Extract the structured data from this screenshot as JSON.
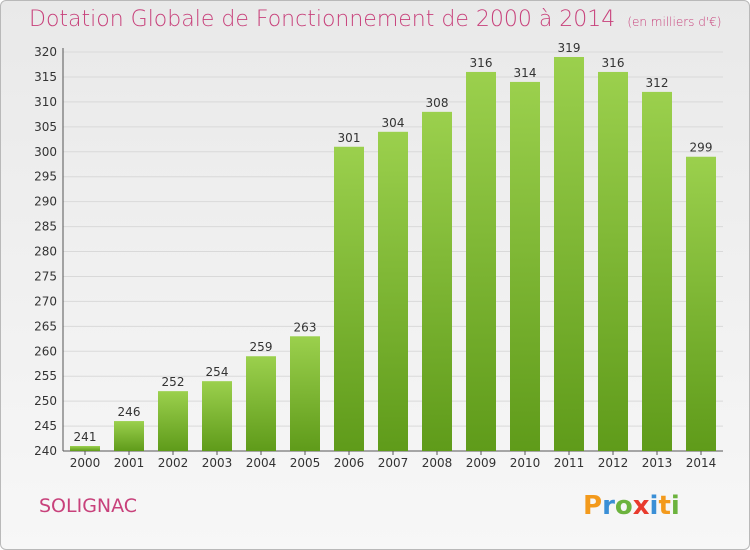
{
  "title": "Dotation Globale de Fonctionnement de 2000 à 2014",
  "unit": "(en milliers d'€)",
  "commune": "SOLIGNAC",
  "logo": [
    "P",
    "r",
    "o",
    "x",
    "i",
    "t",
    "i"
  ],
  "colors": {
    "title": "#c8417b",
    "bar_top": "#9bd04d",
    "bar_bottom": "#5f9b1a",
    "grid": "#d9d9d9"
  },
  "chart_data": {
    "type": "bar",
    "categories": [
      "2000",
      "2001",
      "2002",
      "2003",
      "2004",
      "2005",
      "2006",
      "2007",
      "2008",
      "2009",
      "2010",
      "2011",
      "2012",
      "2013",
      "2014"
    ],
    "values": [
      241,
      246,
      252,
      254,
      259,
      263,
      301,
      304,
      308,
      316,
      314,
      319,
      316,
      312,
      299
    ],
    "ylim": [
      240,
      320
    ],
    "yticks": [
      240,
      245,
      250,
      255,
      260,
      265,
      270,
      275,
      280,
      285,
      290,
      295,
      300,
      305,
      310,
      315,
      320
    ],
    "grid": true
  }
}
